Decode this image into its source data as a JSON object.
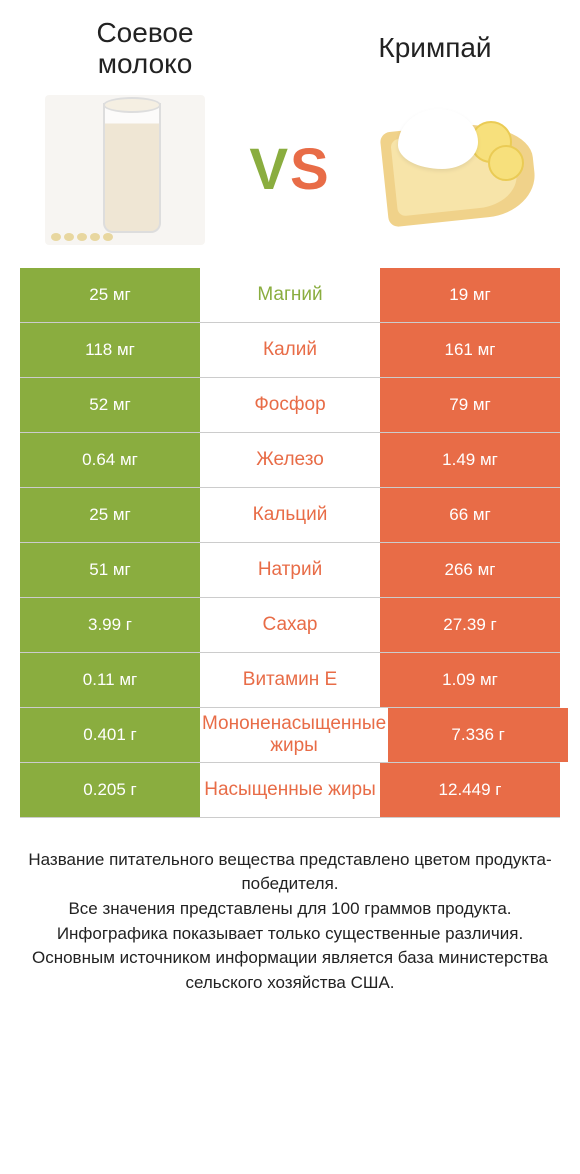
{
  "colors": {
    "left": "#8aad3f",
    "right": "#e86c47",
    "text_dark": "#222222",
    "row_border": "#cccccc",
    "background": "#ffffff"
  },
  "fontsizes": {
    "title": 28,
    "vs": 58,
    "value": 17,
    "nutrient": 19,
    "footer": 17
  },
  "left_product": {
    "title": "Соевое\nмолоко"
  },
  "right_product": {
    "title": "Кримпай"
  },
  "vs_label": "VS",
  "rows": [
    {
      "left": "25 мг",
      "name": "Магний",
      "right": "19 мг",
      "winner": "left"
    },
    {
      "left": "118 мг",
      "name": "Калий",
      "right": "161 мг",
      "winner": "right"
    },
    {
      "left": "52 мг",
      "name": "Фосфор",
      "right": "79 мг",
      "winner": "right"
    },
    {
      "left": "0.64 мг",
      "name": "Железо",
      "right": "1.49 мг",
      "winner": "right"
    },
    {
      "left": "25 мг",
      "name": "Кальций",
      "right": "66 мг",
      "winner": "right"
    },
    {
      "left": "51 мг",
      "name": "Натрий",
      "right": "266 мг",
      "winner": "right"
    },
    {
      "left": "3.99 г",
      "name": "Сахар",
      "right": "27.39 г",
      "winner": "right"
    },
    {
      "left": "0.11 мг",
      "name": "Витамин E",
      "right": "1.09 мг",
      "winner": "right"
    },
    {
      "left": "0.401 г",
      "name": "Мононенасыщенные жиры",
      "right": "7.336 г",
      "winner": "right"
    },
    {
      "left": "0.205 г",
      "name": "Насыщенные жиры",
      "right": "12.449 г",
      "winner": "right"
    }
  ],
  "footer": [
    "Название питательного вещества представлено цветом продукта-победителя.",
    "Все значения представлены для 100 граммов продукта.",
    "Инфографика показывает только существенные различия.",
    "Основным источником информации является база министерства сельского хозяйства США."
  ]
}
